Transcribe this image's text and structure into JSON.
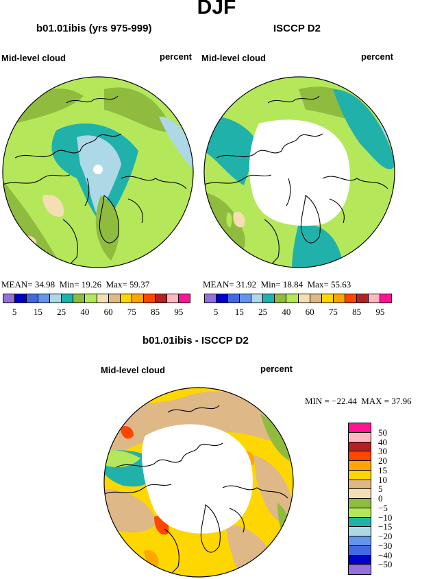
{
  "title": "DJF",
  "left": {
    "subtitle": "b01.01ibis (yrs 975-999)",
    "var_label": "Mid-level cloud",
    "units": "percent",
    "stats": {
      "mean_label": "MEAN=",
      "mean": "34.98",
      "min_label": "Min=",
      "min": "19.26",
      "max_label": "Max=",
      "max": "59.37"
    }
  },
  "right": {
    "subtitle": "ISCCP D2",
    "var_label": "Mid-level cloud",
    "units": "percent",
    "stats": {
      "mean_label": "MEAN=",
      "mean": "31.92",
      "min_label": "Min=",
      "min": "18.84",
      "max_label": "Max=",
      "max": "55.63"
    }
  },
  "diff": {
    "subtitle": "b01.01ibis - ISCCP D2",
    "var_label": "Mid-level cloud",
    "units": "percent",
    "stats": {
      "min_label": "MIN =",
      "min": "−22.44",
      "max_label": "MAX =",
      "max": "37.96"
    }
  },
  "colors": {
    "abs_scale": [
      "#9370db",
      "#0000cd",
      "#4169e1",
      "#6495ed",
      "#add8e6",
      "#20b2aa",
      "#8fbc3f",
      "#b4e85a",
      "#f5deb3",
      "#deb887",
      "#ffd700",
      "#ffa500",
      "#ff4500",
      "#b22222",
      "#ffb6c1",
      "#ff1493"
    ],
    "diff_scale": [
      "#ff1493",
      "#ffb6c1",
      "#b22222",
      "#ff4500",
      "#ffa500",
      "#ffd700",
      "#deb887",
      "#f5deb3",
      "#8fbc3f",
      "#b4e85a",
      "#20b2aa",
      "#add8e6",
      "#6495ed",
      "#4169e1",
      "#0000cd",
      "#9370db"
    ],
    "land": "#000000",
    "missing": "#ffffff"
  },
  "abs_ticks": [
    "5",
    "15",
    "25",
    "40",
    "60",
    "75",
    "85",
    "95"
  ],
  "diff_ticks": [
    "50",
    "40",
    "30",
    "20",
    "15",
    "10",
    "5",
    "0",
    "−5",
    "−10",
    "−15",
    "−20",
    "−30",
    "−40",
    "−50"
  ]
}
